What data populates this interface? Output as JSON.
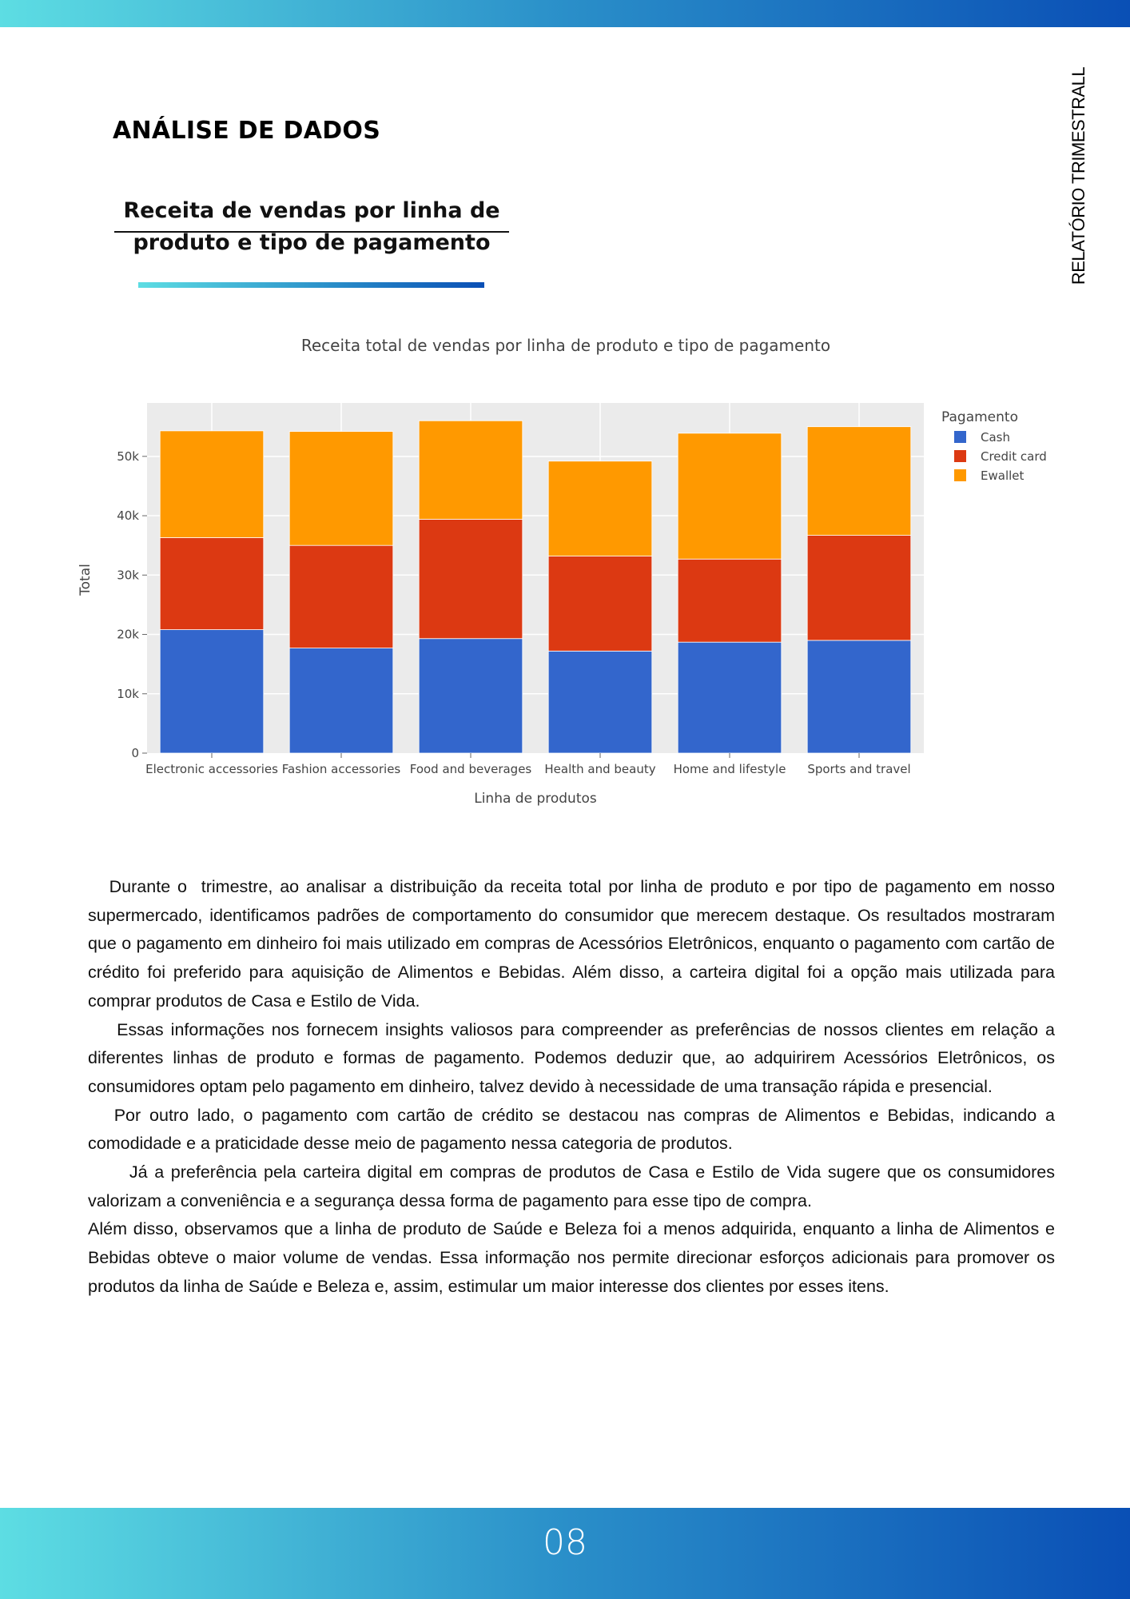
{
  "header": {
    "side_label": "RELATÓRIO TRIMESTRALL",
    "section_title": "ANÁLISE DE DADOS",
    "subtitle": "Receita de vendas por linha de produto e tipo de pagamento"
  },
  "chart_data": {
    "type": "bar",
    "stacked": true,
    "title": "Receita total de vendas por linha de produto e tipo de pagamento",
    "xlabel": "Linha de produtos",
    "ylabel": "Total",
    "ylim": [
      0,
      59000
    ],
    "yticks": [
      0,
      10000,
      20000,
      30000,
      40000,
      50000
    ],
    "ytick_labels": [
      "0",
      "10k",
      "20k",
      "30k",
      "40k",
      "50k"
    ],
    "grid": true,
    "legend_title": "Pagamento",
    "legend_position": "top-right, outside plot",
    "categories": [
      "Electronic accessories",
      "Fashion accessories",
      "Food and beverages",
      "Health and beauty",
      "Home and lifestyle",
      "Sports and travel"
    ],
    "series": [
      {
        "name": "Cash",
        "color": "#3366cc",
        "values": [
          20800,
          17700,
          19300,
          17200,
          18700,
          19000
        ]
      },
      {
        "name": "Credit card",
        "color": "#dc3912",
        "values": [
          15500,
          17300,
          20100,
          16000,
          14000,
          17700
        ]
      },
      {
        "name": "Ewallet",
        "color": "#ff9900",
        "values": [
          18000,
          19200,
          16600,
          16000,
          21200,
          18300
        ]
      }
    ]
  },
  "body": {
    "paragraphs": [
      "   Durante o  trimestre, ao analisar a distribuição da receita total por linha de produto e por tipo de pagamento em nosso supermercado, identificamos padrões de comportamento do consumidor que merecem destaque. Os resultados mostraram que o pagamento em dinheiro foi mais utilizado em compras de Acessórios Eletrônicos, enquanto o pagamento com cartão de crédito foi preferido para aquisição de Alimentos e Bebidas. Além disso, a carteira digital foi a opção mais utilizada para comprar produtos de Casa e Estilo de Vida.",
      "    Essas informações nos fornecem insights valiosos para compreender as preferências de nossos clientes em relação a diferentes linhas de produto e formas de pagamento. Podemos deduzir que, ao adquirirem Acessórios Eletrônicos, os consumidores optam pelo pagamento em dinheiro, talvez devido à necessidade de uma transação rápida e presencial.",
      "   Por outro lado, o pagamento com cartão de crédito se destacou nas compras de Alimentos e Bebidas, indicando a comodidade e a praticidade desse meio de pagamento nessa categoria de produtos.",
      "      Já a preferência pela carteira digital em compras de produtos de Casa e Estilo de Vida sugere que os consumidores valorizam a conveniência e a segurança dessa forma de pagamento para esse tipo de compra.",
      "Além disso, observamos que a linha de produto de Saúde e Beleza foi a menos adquirida, enquanto a linha de Alimentos e Bebidas obteve o maior volume de vendas. Essa informação nos permite direcionar esforços adicionais para promover os produtos da linha de Saúde e Beleza e, assim, estimular um maior interesse dos clientes por esses itens."
    ]
  },
  "footer": {
    "page_number": "08"
  }
}
